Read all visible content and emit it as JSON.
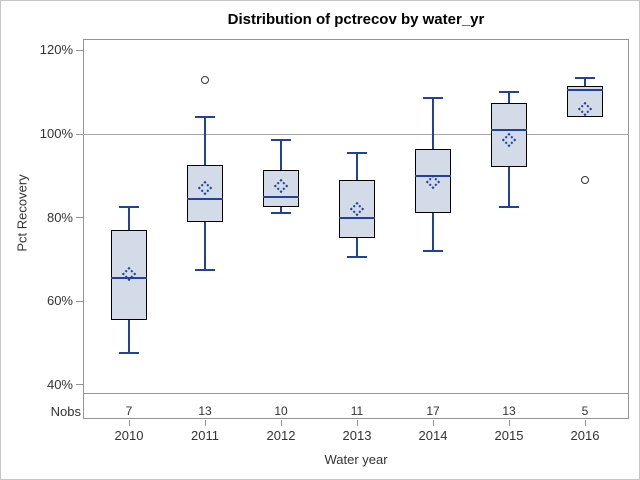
{
  "figure": {
    "kind": "sas-ods-graph"
  },
  "colors": {
    "box_fill": "#d3dbe9",
    "box_border": "#000000",
    "line_blue": "#20419c",
    "outlier": "#333333",
    "reference_line": "#a6a6a6",
    "axis_gray": "#949494",
    "figure_border": "#c6c6c6",
    "background": "#ffffff"
  },
  "chart_data": {
    "type": "boxplot",
    "title": "Distribution of pctrecov by water_yr",
    "xlabel": "Water year",
    "ylabel": "Pct Recovery",
    "y_tick_unit": "%",
    "y_ticks": [
      40,
      60,
      80,
      100,
      120
    ],
    "ylim": [
      38,
      123
    ],
    "reference_line": 100,
    "grid": false,
    "legend": "none",
    "categories": [
      "2010",
      "2011",
      "2012",
      "2013",
      "2014",
      "2015",
      "2016"
    ],
    "nobs_label": "Nobs",
    "nobs": [
      7,
      13,
      10,
      11,
      17,
      13,
      5
    ],
    "series": [
      {
        "category": "2010",
        "nobs": 7,
        "low": 47.5,
        "q1": 55.5,
        "median": 65.5,
        "mean": 66.5,
        "q3": 77,
        "high": 82.5,
        "outliers": []
      },
      {
        "category": "2011",
        "nobs": 13,
        "low": 67.5,
        "q1": 79,
        "median": 84.5,
        "mean": 87,
        "q3": 92.5,
        "high": 104,
        "outliers": [
          113
        ]
      },
      {
        "category": "2012",
        "nobs": 10,
        "low": 81,
        "q1": 82.5,
        "median": 85,
        "mean": 87.5,
        "q3": 91.5,
        "high": 98.5,
        "outliers": []
      },
      {
        "category": "2013",
        "nobs": 11,
        "low": 70.5,
        "q1": 75,
        "median": 80,
        "mean": 82,
        "q3": 89,
        "high": 95.5,
        "outliers": []
      },
      {
        "category": "2014",
        "nobs": 17,
        "low": 72,
        "q1": 81,
        "median": 90,
        "mean": 88.5,
        "q3": 96.5,
        "high": 108.5,
        "outliers": []
      },
      {
        "category": "2015",
        "nobs": 13,
        "low": 82.5,
        "q1": 92,
        "median": 101,
        "mean": 98.5,
        "q3": 107.5,
        "high": 110,
        "outliers": []
      },
      {
        "category": "2016",
        "nobs": 5,
        "low": 104,
        "q1": 104,
        "median": 110.5,
        "mean": 106,
        "q3": 111.5,
        "high": 113.5,
        "outliers": [
          89
        ]
      }
    ]
  }
}
